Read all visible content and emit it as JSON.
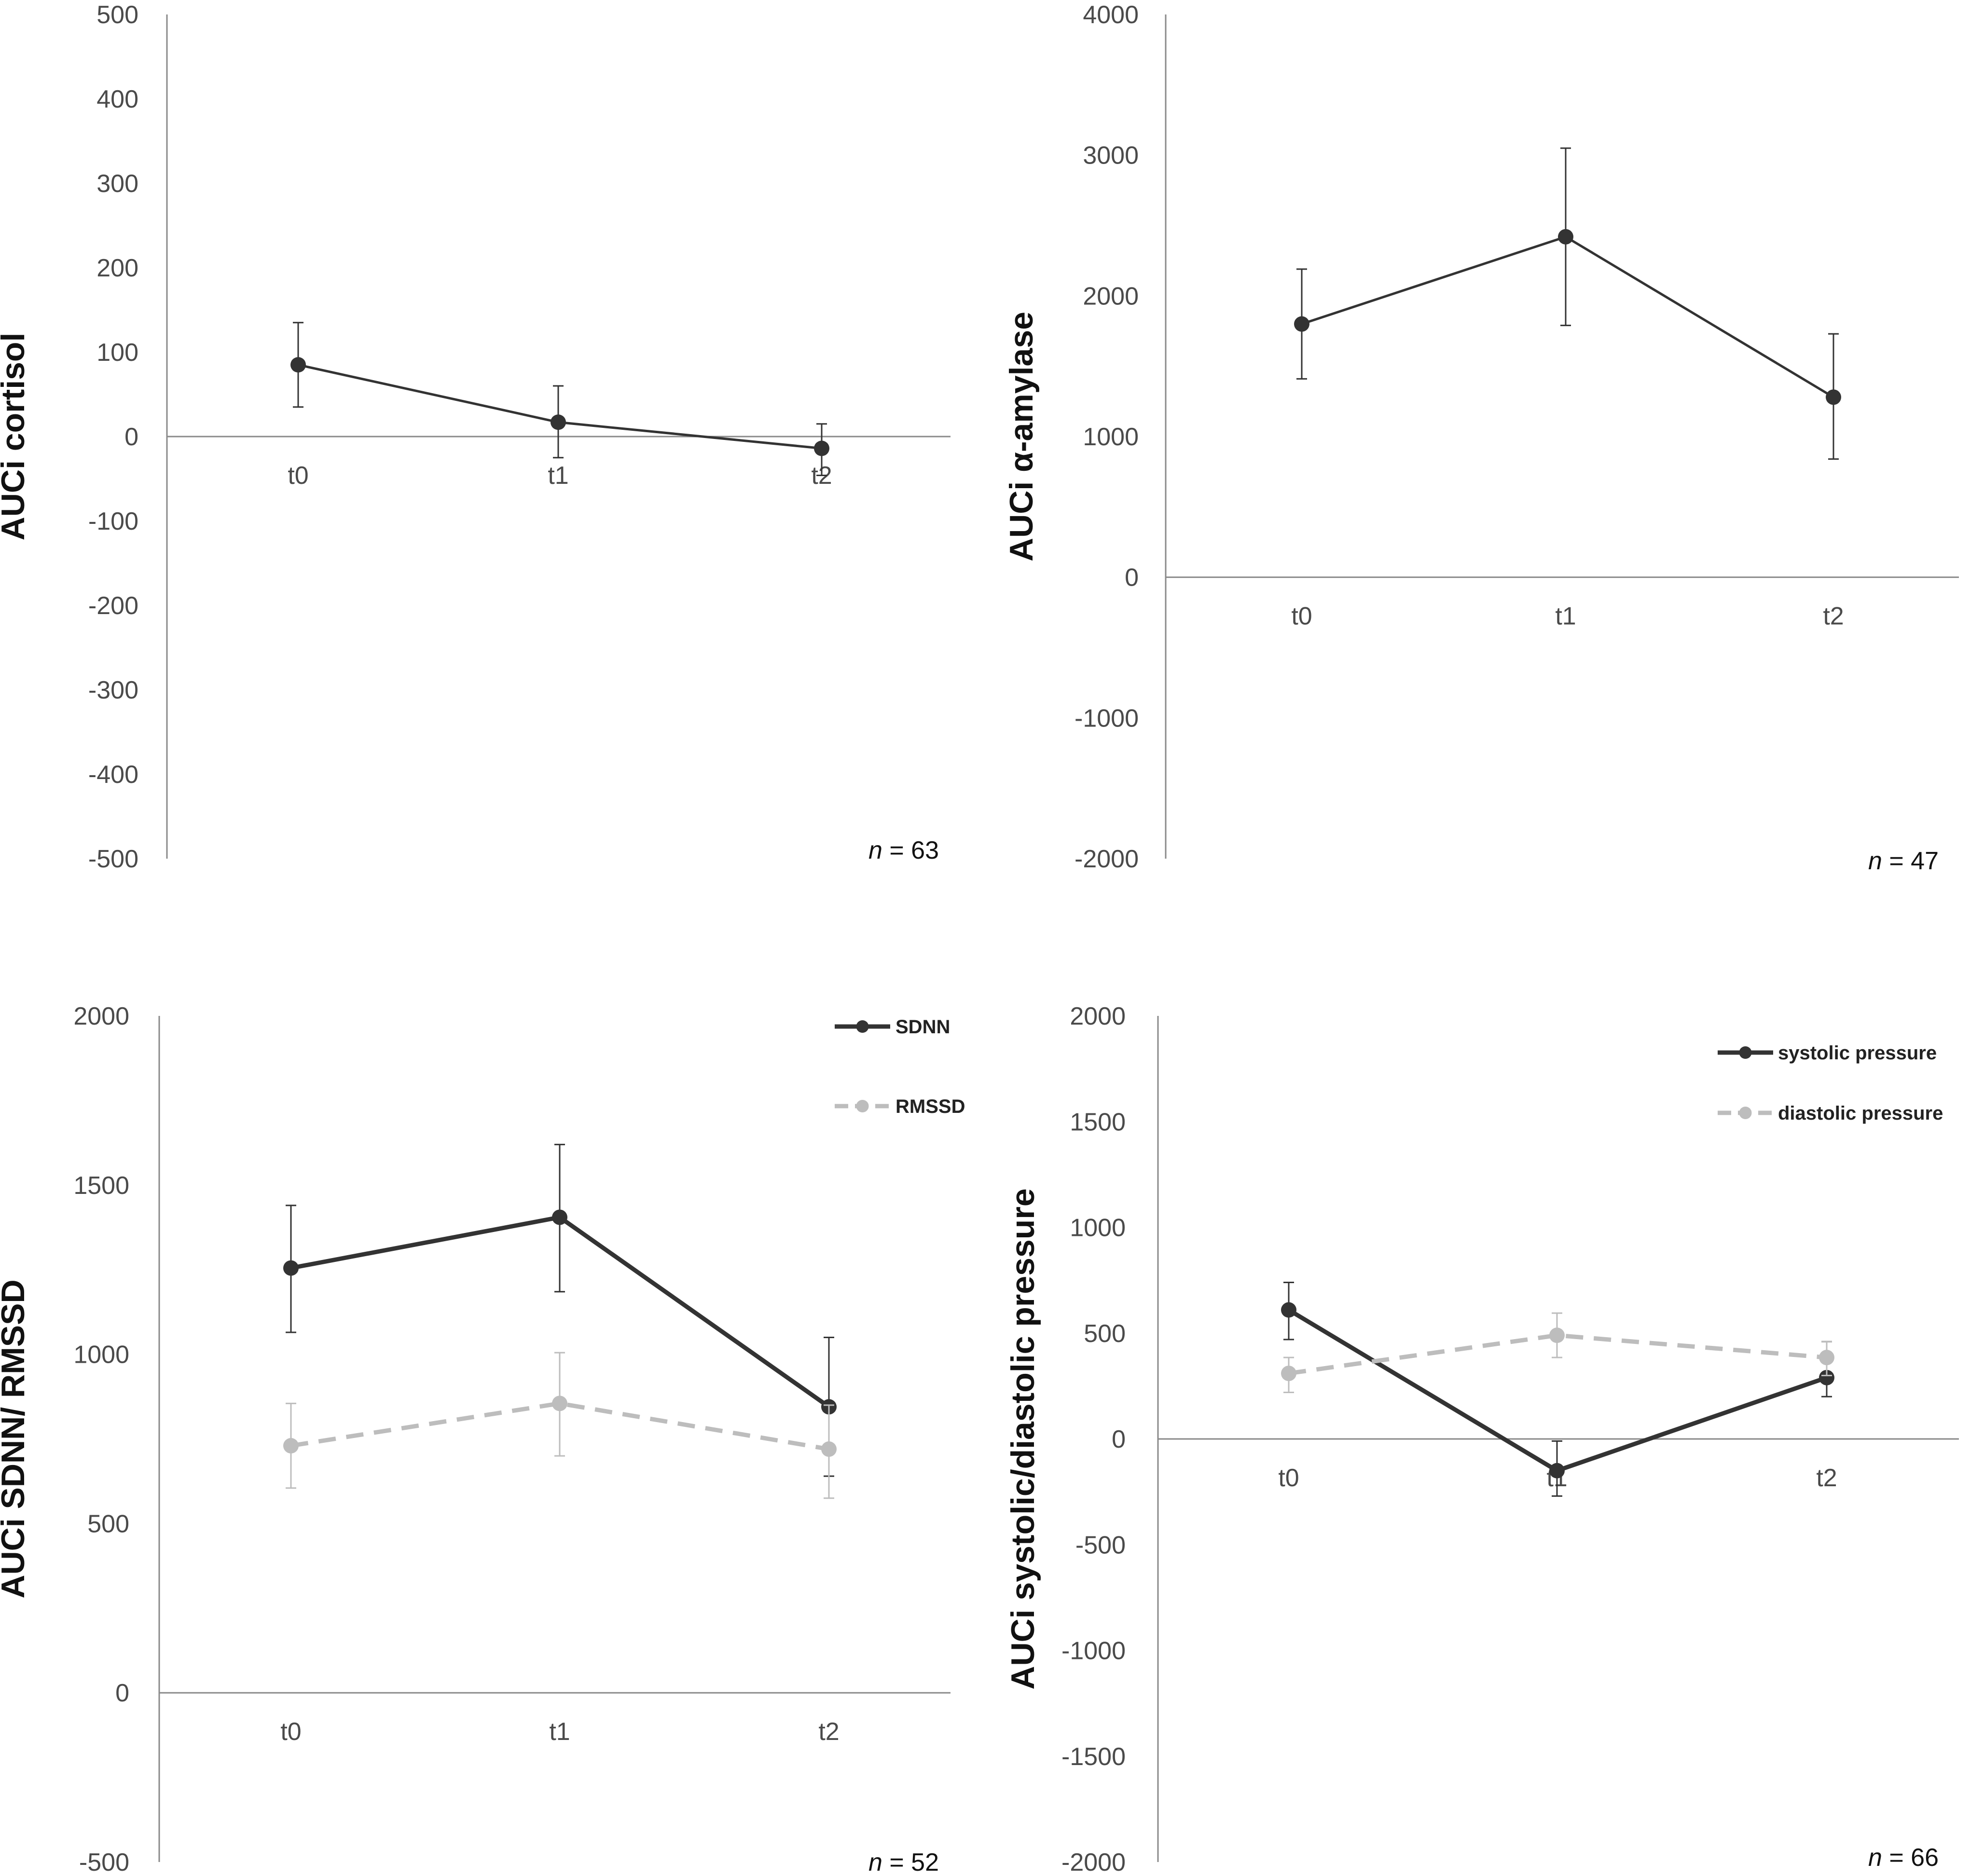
{
  "chart_data": [
    {
      "type": "line",
      "title": "",
      "xlabel": "",
      "ylabel": "AUCi cortisol",
      "categories": [
        "t0",
        "t1",
        "t2"
      ],
      "ylim": [
        -500,
        500
      ],
      "yticks": [
        500,
        400,
        300,
        200,
        100,
        0,
        -100,
        -200,
        -300,
        -400,
        -500
      ],
      "n_note": {
        "italic": "n",
        "rest": " = 63"
      },
      "legend": false,
      "series": [
        {
          "name": "cortisol",
          "color": "#333333",
          "dashed": false,
          "values": [
            85,
            17,
            -14
          ],
          "error_low": [
            35,
            -25,
            -46
          ],
          "error_high": [
            135,
            60,
            15
          ]
        }
      ]
    },
    {
      "type": "line",
      "title": "",
      "xlabel": "",
      "ylabel": "AUCi α-amylase",
      "categories": [
        "t0",
        "t1",
        "t2"
      ],
      "ylim": [
        -2000,
        4000
      ],
      "yticks": [
        4000,
        3000,
        2000,
        1000,
        0,
        -1000,
        -2000
      ],
      "n_note": {
        "italic": "n",
        "rest": " = 47"
      },
      "legend": false,
      "series": [
        {
          "name": "α-amylase",
          "color": "#333333",
          "dashed": false,
          "values": [
            1800,
            2420,
            1280
          ],
          "error_low": [
            1410,
            1790,
            840
          ],
          "error_high": [
            2190,
            3050,
            1730
          ]
        }
      ]
    },
    {
      "type": "line",
      "title": "",
      "xlabel": "",
      "ylabel": "AUCi SDNN/ RMSSD",
      "categories": [
        "t0",
        "t1",
        "t2"
      ],
      "ylim": [
        -500,
        2000
      ],
      "yticks": [
        2000,
        1500,
        1000,
        500,
        0,
        -500
      ],
      "n_note": {
        "italic": "n",
        "rest": " = 52"
      },
      "legend": true,
      "series": [
        {
          "name": "SDNN",
          "color": "#333333",
          "dashed": false,
          "values": [
            1255,
            1405,
            845
          ],
          "error_low": [
            1065,
            1185,
            640
          ],
          "error_high": [
            1440,
            1620,
            1050
          ]
        },
        {
          "name": "RMSSD",
          "color": "#bdbdbd",
          "dashed": true,
          "values": [
            730,
            855,
            720
          ],
          "error_low": [
            605,
            700,
            575
          ],
          "error_high": [
            855,
            1005,
            850
          ]
        }
      ]
    },
    {
      "type": "line",
      "title": "",
      "xlabel": "",
      "ylabel": "AUCi systolic/diastolic pressure",
      "categories": [
        "t0",
        "t1",
        "t2"
      ],
      "ylim": [
        -2000,
        2000
      ],
      "yticks": [
        2000,
        1500,
        1000,
        500,
        0,
        -500,
        -1000,
        -1500,
        -2000
      ],
      "n_note": {
        "italic": "n",
        "rest": " = 66"
      },
      "legend": true,
      "series": [
        {
          "name": "systolic pressure",
          "color": "#333333",
          "dashed": false,
          "values": [
            610,
            -150,
            290
          ],
          "error_low": [
            470,
            -270,
            200
          ],
          "error_high": [
            740,
            -10,
            460
          ]
        },
        {
          "name": "diastolic pressure",
          "color": "#bdbdbd",
          "dashed": true,
          "values": [
            310,
            490,
            385
          ],
          "error_low": [
            220,
            385,
            300
          ],
          "error_high": [
            385,
            595,
            460
          ]
        }
      ]
    }
  ]
}
